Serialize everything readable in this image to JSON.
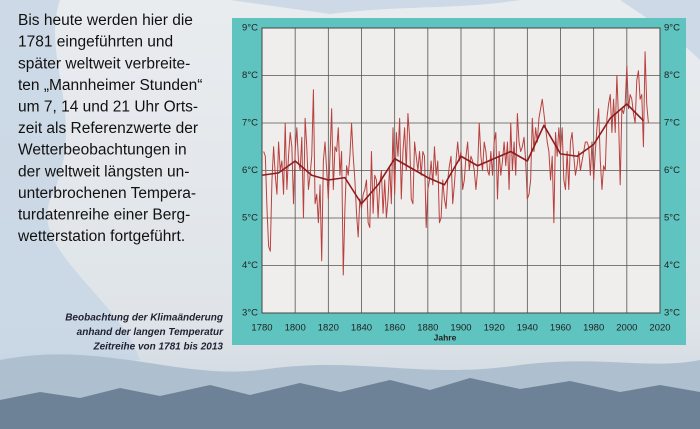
{
  "panel_text": [
    "Bis heute werden hier die",
    "1781 eingeführten und",
    "später weltweit verbreite-",
    "ten „Mannheimer Stunden“",
    "um 7, 14 und 21 Uhr Orts-",
    "zeit als Referenzwerte der",
    "Wetterbeobachtungen in",
    "der weltweit längsten un-",
    "unterbrochenen Tempera-",
    "turdatenreihe einer Berg-",
    "wetterstation fortgeführt."
  ],
  "caption": [
    "Beobachtung der Klimaänderung",
    "anhand der langen Temperatur",
    "Zeitreihe von 1781 bis 2013"
  ],
  "chart_data": {
    "type": "line",
    "x_label": "Jahre",
    "xlim": [
      1780,
      2020
    ],
    "xticks": [
      1780,
      1800,
      1820,
      1840,
      1860,
      1880,
      1900,
      1920,
      1940,
      1960,
      1980,
      2000,
      2020
    ],
    "ylim": [
      3,
      9
    ],
    "yticks": [
      {
        "value": 3,
        "label": "3°C"
      },
      {
        "value": 4,
        "label": "4°C"
      },
      {
        "value": 5,
        "label": "5°C"
      },
      {
        "value": 6,
        "label": "6°C"
      },
      {
        "value": 7,
        "label": "7°C"
      },
      {
        "value": 8,
        "label": "8°C"
      },
      {
        "value": 9,
        "label": "9°C"
      }
    ],
    "xgrid_step": null,
    "grid": true,
    "series": [
      {
        "color": "#b8413f",
        "width": 1,
        "x": [
          1781,
          1782,
          1783,
          1784,
          1785,
          1786,
          1787,
          1788,
          1789,
          1790,
          1791,
          1792,
          1793,
          1794,
          1795,
          1796,
          1797,
          1798,
          1799,
          1800,
          1801,
          1802,
          1803,
          1804,
          1805,
          1806,
          1807,
          1808,
          1809,
          1810,
          1811,
          1812,
          1813,
          1814,
          1815,
          1816,
          1817,
          1818,
          1819,
          1820,
          1821,
          1822,
          1823,
          1824,
          1825,
          1826,
          1827,
          1828,
          1829,
          1830,
          1831,
          1832,
          1833,
          1834,
          1835,
          1836,
          1837,
          1838,
          1839,
          1840,
          1841,
          1842,
          1843,
          1844,
          1845,
          1846,
          1847,
          1848,
          1849,
          1850,
          1851,
          1852,
          1853,
          1854,
          1855,
          1856,
          1857,
          1858,
          1859,
          1860,
          1861,
          1862,
          1863,
          1864,
          1865,
          1866,
          1867,
          1868,
          1869,
          1870,
          1871,
          1872,
          1873,
          1874,
          1875,
          1876,
          1877,
          1878,
          1879,
          1880,
          1881,
          1882,
          1883,
          1884,
          1885,
          1886,
          1887,
          1888,
          1889,
          1890,
          1891,
          1892,
          1893,
          1894,
          1895,
          1896,
          1897,
          1898,
          1899,
          1900,
          1901,
          1902,
          1903,
          1904,
          1905,
          1906,
          1907,
          1908,
          1909,
          1910,
          1911,
          1912,
          1913,
          1914,
          1915,
          1916,
          1917,
          1918,
          1919,
          1920,
          1921,
          1922,
          1923,
          1924,
          1925,
          1926,
          1927,
          1928,
          1929,
          1930,
          1931,
          1932,
          1933,
          1934,
          1935,
          1936,
          1937,
          1938,
          1939,
          1940,
          1941,
          1942,
          1943,
          1944,
          1945,
          1946,
          1947,
          1948,
          1949,
          1950,
          1951,
          1952,
          1953,
          1954,
          1955,
          1956,
          1957,
          1958,
          1959,
          1960,
          1961,
          1962,
          1963,
          1964,
          1965,
          1966,
          1967,
          1968,
          1969,
          1970,
          1971,
          1972,
          1973,
          1974,
          1975,
          1976,
          1977,
          1978,
          1979,
          1980,
          1981,
          1982,
          1983,
          1984,
          1985,
          1986,
          1987,
          1988,
          1989,
          1990,
          1991,
          1992,
          1993,
          1994,
          1995,
          1996,
          1997,
          1998,
          1999,
          2000,
          2001,
          2002,
          2003,
          2004,
          2005,
          2006,
          2007,
          2008,
          2009,
          2010,
          2011,
          2012,
          2013
        ],
        "values": [
          6.4,
          6.3,
          5.2,
          4.4,
          4.3,
          5.8,
          6.5,
          5.9,
          5.5,
          6.6,
          6.0,
          6.2,
          5.5,
          7.0,
          5.6,
          6.3,
          6.8,
          6.5,
          5.3,
          6.4,
          6.9,
          6.2,
          6.0,
          6.7,
          5.0,
          7.1,
          6.5,
          5.6,
          5.9,
          6.3,
          7.7,
          5.3,
          5.5,
          4.9,
          5.7,
          4.1,
          6.2,
          6.6,
          6.0,
          5.4,
          6.3,
          7.3,
          5.6,
          6.5,
          6.4,
          6.9,
          5.9,
          6.4,
          3.8,
          5.2,
          6.1,
          5.9,
          6.3,
          7.0,
          6.3,
          5.8,
          5.1,
          4.6,
          5.4,
          5.2,
          5.5,
          5.6,
          5.8,
          4.9,
          4.8,
          6.4,
          5.1,
          5.9,
          5.8,
          5.0,
          5.7,
          6.0,
          5.1,
          5.8,
          5.0,
          5.4,
          6.1,
          5.3,
          6.9,
          5.5,
          6.8,
          6.3,
          7.1,
          5.4,
          6.4,
          6.9,
          6.0,
          7.2,
          6.7,
          5.4,
          5.3,
          6.6,
          6.3,
          6.0,
          6.4,
          5.9,
          6.4,
          6.3,
          4.8,
          5.6,
          5.8,
          6.2,
          5.7,
          6.5,
          5.9,
          6.2,
          4.9,
          5.0,
          5.8,
          5.4,
          5.2,
          5.8,
          6.1,
          6.3,
          5.3,
          5.7,
          6.2,
          6.6,
          6.2,
          6.4,
          5.6,
          5.8,
          6.3,
          6.6,
          6.0,
          6.3,
          6.2,
          6.0,
          5.6,
          6.0,
          7.0,
          6.3,
          6.0,
          6.6,
          6.4,
          6.0,
          5.9,
          6.4,
          5.9,
          6.6,
          6.8,
          5.4,
          6.4,
          5.9,
          6.2,
          6.6,
          6.1,
          6.6,
          5.6,
          7.0,
          6.0,
          6.6,
          5.9,
          7.2,
          6.6,
          6.4,
          6.5,
          6.7,
          6.2,
          5.4,
          5.5,
          5.8,
          7.1,
          6.4,
          6.9,
          6.6,
          7.1,
          7.3,
          7.5,
          7.2,
          6.9,
          6.6,
          6.4,
          5.8,
          6.3,
          4.9,
          6.8,
          6.3,
          6.9,
          6.4,
          6.9,
          5.8,
          5.6,
          6.4,
          5.6,
          6.6,
          6.8,
          6.3,
          5.9,
          6.1,
          6.4,
          6.0,
          6.2,
          6.4,
          6.6,
          6.6,
          6.5,
          5.9,
          6.6,
          5.8,
          6.4,
          6.9,
          7.3,
          6.2,
          5.6,
          6.1,
          6.0,
          7.1,
          7.4,
          7.6,
          6.8,
          7.5,
          6.8,
          8.0,
          7.1,
          5.7,
          7.3,
          7.2,
          7.4,
          8.2,
          7.3,
          7.6,
          7.5,
          7.2,
          7.0,
          7.9,
          8.1,
          7.5,
          7.6,
          6.5,
          8.5,
          7.4,
          7.0
        ]
      },
      {
        "color": "#8e1c1e",
        "width": 1.6,
        "x": [
          1780,
          1790,
          1800,
          1810,
          1820,
          1830,
          1840,
          1850,
          1860,
          1870,
          1880,
          1890,
          1900,
          1910,
          1920,
          1930,
          1940,
          1950,
          1960,
          1970,
          1980,
          1990,
          2000,
          2010
        ],
        "values": [
          5.9,
          5.95,
          6.2,
          5.9,
          5.8,
          5.85,
          5.3,
          5.7,
          6.25,
          6.05,
          5.85,
          5.7,
          6.3,
          6.1,
          6.25,
          6.4,
          6.2,
          6.95,
          6.35,
          6.3,
          6.55,
          7.1,
          7.4,
          7.05
        ]
      }
    ]
  }
}
